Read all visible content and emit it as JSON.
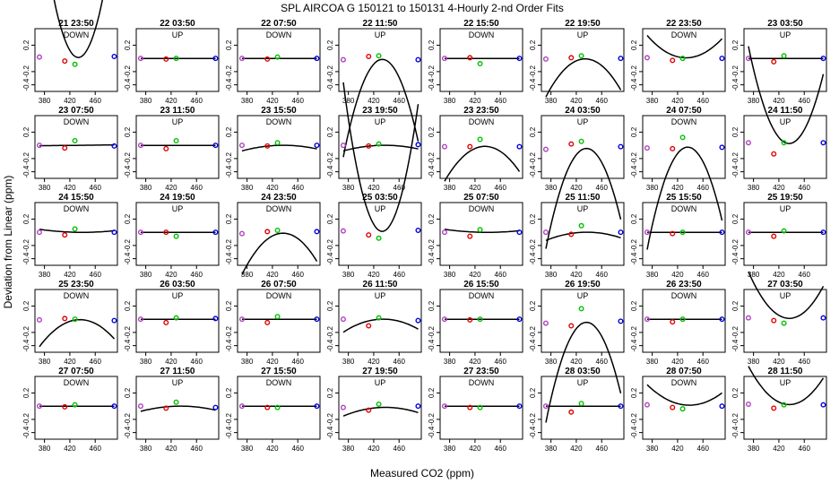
{
  "chart_data": {
    "type": "scatter",
    "title": "SPL   AIRCOA G   150121 to 150131   4-Hourly 2-nd Order Fits",
    "xlabel": "Measured CO2 (ppm)",
    "ylabel": "Deviation from Linear (ppm)",
    "xlim": [
      365,
      495
    ],
    "ylim": [
      -0.5,
      0.45
    ],
    "xticks": [
      "380",
      "420",
      "460"
    ],
    "yticks": [
      "-0.4",
      "-0.2",
      "0.2"
    ],
    "grid": false,
    "legend": "none",
    "point_x": [
      372,
      412,
      428,
      490
    ],
    "point_colors": [
      "#b040c0",
      "#e00000",
      "#00c000",
      "#0000e0"
    ],
    "curve_color": "#000000",
    "panels": [
      {
        "title": "21 23:50",
        "dir": "DOWN",
        "y": [
          0.02,
          -0.04,
          -0.09,
          0.03
        ],
        "c": [
          0.02,
          -0.004,
          0.0006
        ]
      },
      {
        "title": "22 03:50",
        "dir": "UP",
        "y": [
          0.0,
          -0.01,
          0.0,
          0.0
        ],
        "c": [
          0.0,
          0.0,
          0.0
        ]
      },
      {
        "title": "22 07:50",
        "dir": "DOWN",
        "y": [
          0.0,
          -0.01,
          0.02,
          0.0
        ],
        "c": [
          0.0,
          0.0,
          0.0
        ]
      },
      {
        "title": "22 11:50",
        "dir": "UP",
        "y": [
          -0.02,
          0.03,
          0.04,
          -0.02
        ],
        "c": [
          -0.02,
          0.0028,
          -0.00039
        ]
      },
      {
        "title": "22 15:50",
        "dir": "DOWN",
        "y": [
          0.0,
          0.01,
          -0.08,
          0.0
        ],
        "c": [
          0.0,
          0.0,
          0.0
        ]
      },
      {
        "title": "22 19:50",
        "dir": "UP",
        "y": [
          -0.01,
          0.01,
          0.04,
          0.0
        ],
        "c": [
          -0.01,
          0.0012,
          -0.00015
        ]
      },
      {
        "title": "22 23:50",
        "dir": "DOWN",
        "y": [
          0.01,
          -0.03,
          0.0,
          0.0
        ],
        "c": [
          0.01,
          -0.0006,
          9e-05
        ]
      },
      {
        "title": "23 03:50",
        "dir": "UP",
        "y": [
          0.0,
          -0.05,
          0.04,
          0.0
        ],
        "c": [
          0.0,
          0.0,
          0.0
        ]
      },
      {
        "title": "23 07:50",
        "dir": "DOWN",
        "y": [
          0.0,
          -0.04,
          0.07,
          -0.01
        ],
        "c": [
          0.0,
          0.0001,
          0.0
        ]
      },
      {
        "title": "23 11:50",
        "dir": "UP",
        "y": [
          0.0,
          -0.05,
          0.07,
          0.0
        ],
        "c": [
          0.0,
          0.0,
          0.0
        ]
      },
      {
        "title": "23 15:50",
        "dir": "DOWN",
        "y": [
          0.0,
          -0.01,
          0.04,
          0.0
        ],
        "c": [
          0.0,
          0.0003,
          -2e-05
        ]
      },
      {
        "title": "23 19:50",
        "dir": "UP",
        "y": [
          0.0,
          -0.01,
          0.02,
          0.01
        ],
        "c": [
          0.0,
          0.0003,
          -2e-05
        ]
      },
      {
        "title": "23 23:50",
        "dir": "DOWN",
        "y": [
          -0.02,
          -0.02,
          0.09,
          -0.02
        ],
        "c": [
          -0.02,
          0.0015,
          -0.00013
        ]
      },
      {
        "title": "24 03:50",
        "dir": "UP",
        "y": [
          -0.06,
          0.02,
          0.06,
          -0.02
        ],
        "c": [
          -0.06,
          0.0045,
          -0.00037
        ]
      },
      {
        "title": "24 07:50",
        "dir": "DOWN",
        "y": [
          -0.04,
          -0.05,
          0.12,
          -0.03
        ],
        "c": [
          -0.04,
          0.0045,
          -0.00038
        ]
      },
      {
        "title": "24 11:50",
        "dir": "UP",
        "y": [
          0.04,
          -0.13,
          0.04,
          0.04
        ],
        "c": [
          0.04,
          -0.0043,
          0.00036
        ]
      },
      {
        "title": "24 15:50",
        "dir": "DOWN",
        "y": [
          0.0,
          -0.04,
          0.05,
          0.0
        ],
        "c": [
          0.0,
          -0.0002,
          1e-05
        ]
      },
      {
        "title": "24 19:50",
        "dir": "UP",
        "y": [
          0.0,
          0.0,
          -0.06,
          0.0
        ],
        "c": [
          0.0,
          0.0,
          0.0
        ]
      },
      {
        "title": "24 23:50",
        "dir": "DOWN",
        "y": [
          -0.02,
          0.01,
          0.03,
          0.01
        ],
        "c": [
          -0.02,
          0.002,
          -0.00015
        ]
      },
      {
        "title": "25 03:50",
        "dir": "UP",
        "y": [
          0.02,
          -0.04,
          -0.09,
          0.03
        ],
        "c": [
          0.02,
          -0.004,
          0.0006
        ]
      },
      {
        "title": "25 07:50",
        "dir": "DOWN",
        "y": [
          0.0,
          -0.06,
          0.04,
          0.0
        ],
        "c": [
          0.0,
          -0.0002,
          1e-05
        ]
      },
      {
        "title": "25 11:50",
        "dir": "UP",
        "y": [
          0.0,
          -0.03,
          0.1,
          0.0
        ],
        "c": [
          0.0,
          0.0004,
          -3e-05
        ]
      },
      {
        "title": "25 15:50",
        "dir": "DOWN",
        "y": [
          0.0,
          -0.02,
          0.0,
          0.0
        ],
        "c": [
          0.0,
          0.0,
          0.0
        ]
      },
      {
        "title": "25 19:50",
        "dir": "UP",
        "y": [
          0.0,
          -0.06,
          0.02,
          0.0
        ],
        "c": [
          0.0,
          0.0,
          0.0
        ]
      },
      {
        "title": "25 23:50",
        "dir": "DOWN",
        "y": [
          -0.01,
          0.01,
          0.0,
          -0.02
        ],
        "c": [
          -0.01,
          0.0012,
          -0.0001
        ]
      },
      {
        "title": "26 03:50",
        "dir": "UP",
        "y": [
          0.0,
          -0.05,
          0.02,
          0.01
        ],
        "c": [
          0.0,
          0.0,
          0.0
        ]
      },
      {
        "title": "26 07:50",
        "dir": "DOWN",
        "y": [
          0.0,
          -0.05,
          0.04,
          0.0
        ],
        "c": [
          0.0,
          0.0,
          0.0
        ]
      },
      {
        "title": "26 11:50",
        "dir": "UP",
        "y": [
          0.0,
          -0.1,
          0.02,
          -0.02
        ],
        "c": [
          0.0,
          0.0005,
          -5e-05
        ]
      },
      {
        "title": "26 15:50",
        "dir": "DOWN",
        "y": [
          0.0,
          -0.01,
          0.0,
          0.0
        ],
        "c": [
          0.0,
          0.0,
          0.0
        ]
      },
      {
        "title": "26 19:50",
        "dir": "UP",
        "y": [
          -0.06,
          -0.1,
          0.16,
          -0.03
        ],
        "c": [
          -0.06,
          0.0045,
          -0.00037
        ]
      },
      {
        "title": "26 23:50",
        "dir": "DOWN",
        "y": [
          0.0,
          -0.04,
          0.0,
          0.0
        ],
        "c": [
          0.0,
          0.0,
          0.0
        ]
      },
      {
        "title": "27 03:50",
        "dir": "UP",
        "y": [
          0.02,
          -0.02,
          -0.06,
          0.02
        ],
        "c": [
          0.02,
          -0.0022,
          0.00017
        ]
      },
      {
        "title": "27 07:50",
        "dir": "DOWN",
        "y": [
          0.0,
          -0.01,
          0.02,
          0.0
        ],
        "c": [
          0.0,
          0.0,
          0.0
        ]
      },
      {
        "title": "27 11:50",
        "dir": "UP",
        "y": [
          0.0,
          -0.03,
          0.06,
          -0.02
        ],
        "c": [
          0.0,
          0.0002,
          -2e-05
        ]
      },
      {
        "title": "27 15:50",
        "dir": "DOWN",
        "y": [
          0.0,
          -0.02,
          -0.02,
          0.0
        ],
        "c": [
          0.0,
          0.0,
          0.0
        ]
      },
      {
        "title": "27 19:50",
        "dir": "UP",
        "y": [
          -0.02,
          -0.06,
          0.03,
          0.0
        ],
        "c": [
          -0.02,
          0.0005,
          -3e-05
        ]
      },
      {
        "title": "27 23:50",
        "dir": "DOWN",
        "y": [
          0.0,
          -0.02,
          -0.02,
          0.0
        ],
        "c": [
          0.0,
          0.0,
          0.0
        ]
      },
      {
        "title": "28 03:50",
        "dir": "UP",
        "y": [
          0.0,
          -0.09,
          0.04,
          0.0
        ],
        "c": [
          0.0,
          0.0,
          0.0
        ]
      },
      {
        "title": "28 07:50",
        "dir": "DOWN",
        "y": [
          0.02,
          -0.02,
          -0.04,
          0.0
        ],
        "c": [
          0.02,
          -0.0012,
          7e-05
        ]
      },
      {
        "title": "28 11:50",
        "dir": "UP",
        "y": [
          0.03,
          -0.03,
          0.02,
          0.02
        ],
        "c": [
          0.03,
          -0.0018,
          0.00014
        ]
      }
    ]
  }
}
